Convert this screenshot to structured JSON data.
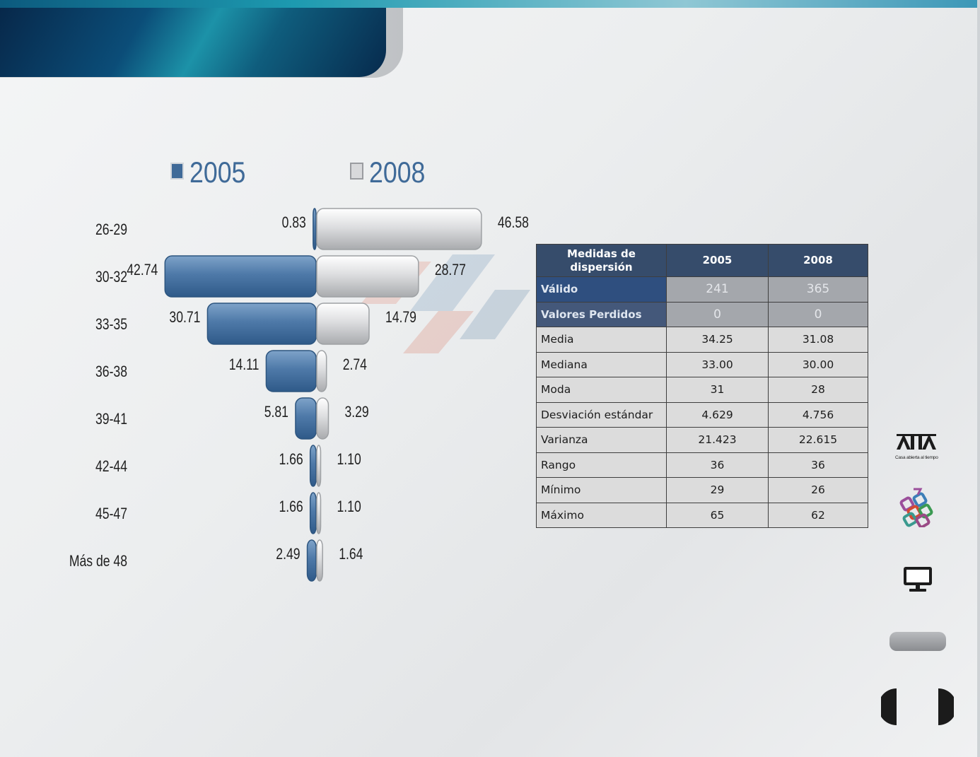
{
  "chart_data": {
    "type": "bar",
    "orientation": "horizontal",
    "layout": "diverging",
    "categories": [
      "26-29",
      "30-32",
      "33-35",
      "36-38",
      "39-41",
      "42-44",
      "45-47",
      "Más de 48"
    ],
    "series": [
      {
        "name": "2005",
        "color": "#4e79a8",
        "side": "left",
        "values": [
          0.83,
          42.74,
          30.71,
          14.11,
          5.81,
          1.66,
          1.66,
          2.49
        ],
        "labels": [
          "0.83",
          "42.74",
          "30.71",
          "14.11",
          "5.81",
          "1.66",
          "1.66",
          "2.49"
        ]
      },
      {
        "name": "2008",
        "color": "#d7d8da",
        "side": "right",
        "values": [
          46.58,
          28.77,
          14.79,
          2.74,
          3.29,
          1.1,
          1.1,
          1.64
        ],
        "labels": [
          "46.58",
          "28.77",
          "14.79",
          "2.74",
          "3.29",
          "1.10",
          "1.10",
          "1.64"
        ]
      }
    ],
    "legend_position": "top"
  },
  "table": {
    "headers": [
      "Medidas  de dispersión",
      "2005",
      "2008"
    ],
    "rows": [
      {
        "label": "Válido",
        "v2005": "241",
        "v2008": "365"
      },
      {
        "label": "Valores Perdidos",
        "v2005": "0",
        "v2008": "0"
      },
      {
        "label": "Media",
        "v2005": "34.25",
        "v2008": "31.08"
      },
      {
        "label": "Mediana",
        "v2005": "33.00",
        "v2008": "30.00"
      },
      {
        "label": "Moda",
        "v2005": "31",
        "v2008": "28"
      },
      {
        "label": "Desviación estándar",
        "v2005": "4.629",
        "v2008": "4.756"
      },
      {
        "label": "Varianza",
        "v2005": "21.423",
        "v2008": "22.615"
      },
      {
        "label": "Rango",
        "v2005": "36",
        "v2008": "36"
      },
      {
        "label": "Mínimo",
        "v2005": "29",
        "v2008": "26"
      },
      {
        "label": "Máximo",
        "v2005": "65",
        "v2008": "62"
      }
    ]
  },
  "sidebar": {
    "uam_logo_text": "UAM",
    "uam_tagline": "Casa abierta al tiempo",
    "icons": [
      "uam-logo-icon",
      "colored-logo-icon",
      "monitor-icon",
      "pill-button",
      "prev-icon",
      "next-icon"
    ]
  },
  "colors": {
    "header_dark": "#07284a",
    "header_accent": "#1c92a8",
    "table_header": "#364c6b",
    "table_cell": "#dcdcdc",
    "bar_2005": "#4e79a8",
    "bar_2008": "#d7d8da"
  }
}
